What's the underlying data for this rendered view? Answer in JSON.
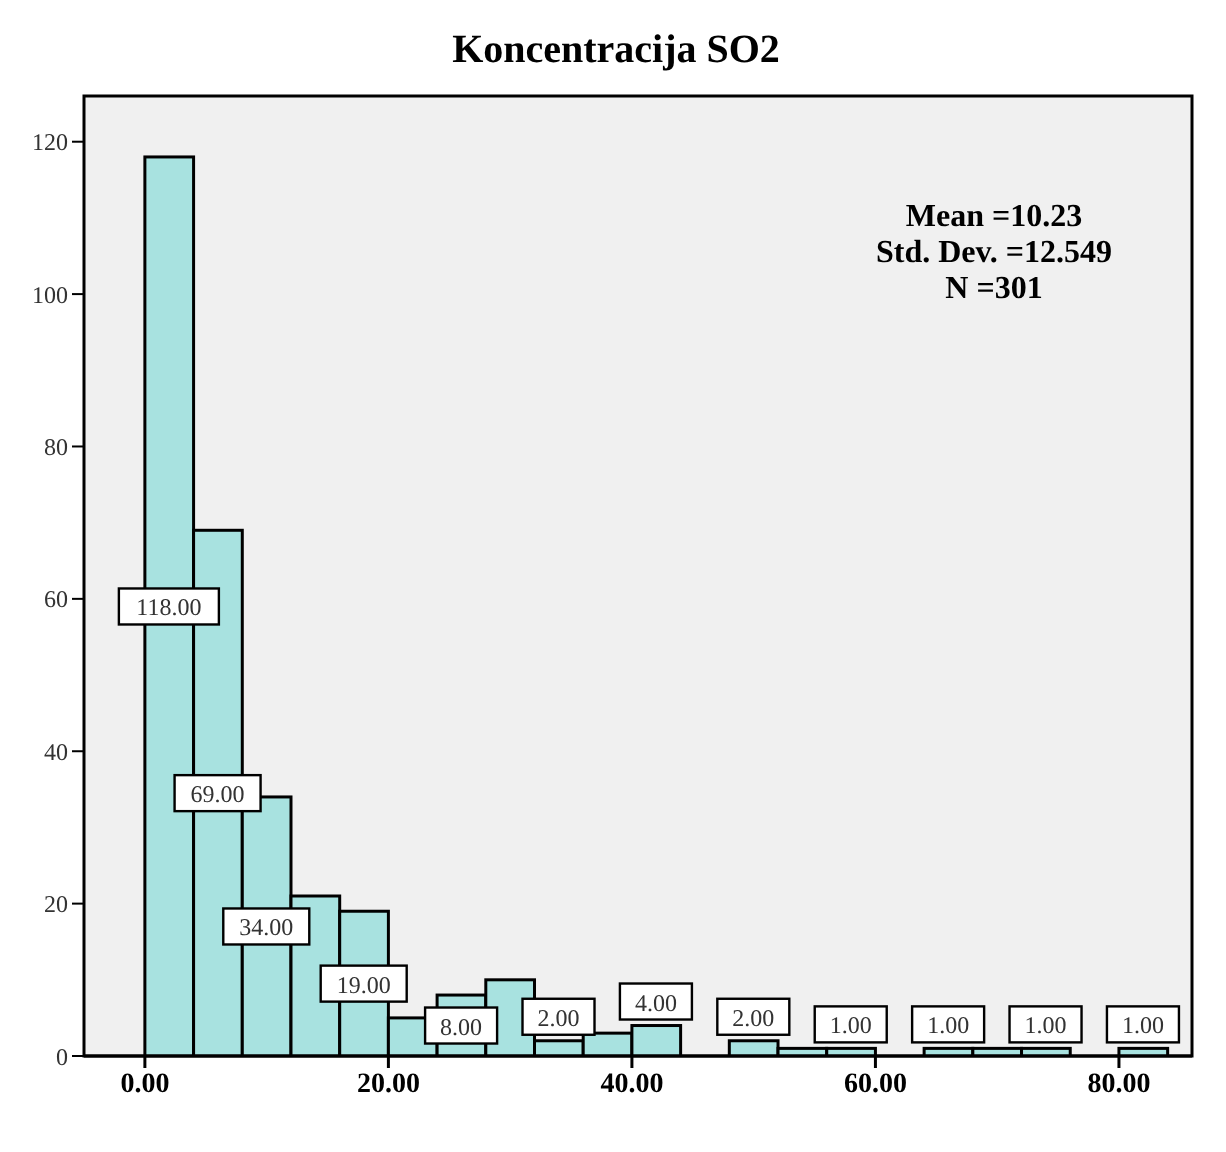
{
  "chart_data": {
    "type": "histogram",
    "title": "Koncentracija SO2",
    "bins": [
      0,
      4,
      8,
      12,
      16,
      20,
      24,
      28,
      32,
      36,
      40,
      44,
      48,
      52,
      56,
      60,
      64,
      68,
      72,
      76,
      80,
      84
    ],
    "values": [
      118,
      69,
      34,
      21,
      19,
      5,
      8,
      10,
      2,
      3,
      4,
      0,
      2,
      1,
      1,
      0,
      1,
      1,
      1,
      0,
      1
    ],
    "value_labels": [
      "118.00",
      "69.00",
      "34.00",
      null,
      "19.00",
      null,
      "8.00",
      null,
      "2.00",
      null,
      "4.00",
      null,
      "2.00",
      null,
      "1.00",
      null,
      "1.00",
      null,
      "1.00",
      null,
      "1.00"
    ],
    "color": "#a8e2e0",
    "xlim": [
      -5,
      86
    ],
    "xticks": [
      {
        "value": 0,
        "label": "0.00"
      },
      {
        "value": 20,
        "label": "20.00"
      },
      {
        "value": 40,
        "label": "40.00"
      },
      {
        "value": 60,
        "label": "60.00"
      },
      {
        "value": 80,
        "label": "80.00"
      }
    ],
    "ylim": [
      0,
      126
    ],
    "yticks": [
      0,
      20,
      40,
      60,
      80,
      100,
      120
    ],
    "annotations": [
      "Mean =10.23",
      "Std. Dev. =12.549",
      "N =301"
    ]
  }
}
